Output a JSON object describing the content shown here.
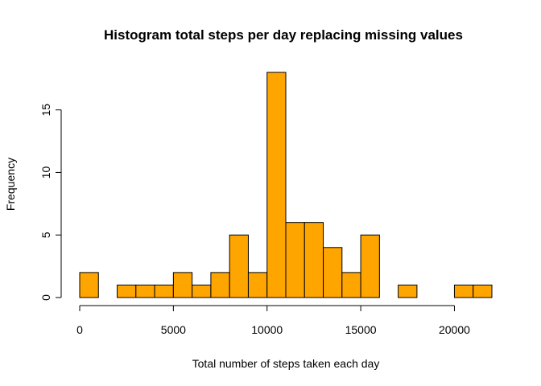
{
  "chart_data": {
    "type": "bar",
    "title": "Histogram total steps per day replacing missing values",
    "xlabel": "Total number of steps taken each day",
    "ylabel": "Frequency",
    "bar_color": "#FFA500",
    "bar_border_color": "#000000",
    "bin_width": 1000,
    "bins_start": [
      0,
      1000,
      2000,
      3000,
      4000,
      5000,
      6000,
      7000,
      8000,
      9000,
      10000,
      11000,
      12000,
      13000,
      14000,
      15000,
      16000,
      17000,
      18000,
      19000,
      20000,
      21000
    ],
    "values": [
      2,
      0,
      1,
      1,
      1,
      2,
      1,
      2,
      5,
      2,
      18,
      6,
      6,
      4,
      2,
      5,
      0,
      1,
      0,
      0,
      1,
      1
    ],
    "xlim": [
      0,
      22000
    ],
    "ylim": [
      0,
      18
    ],
    "x_ticks": [
      0,
      5000,
      10000,
      15000,
      20000
    ],
    "x_tick_labels": [
      "0",
      "5000",
      "10000",
      "15000",
      "20000"
    ],
    "y_ticks": [
      0,
      5,
      10,
      15
    ],
    "y_tick_labels": [
      "0",
      "5",
      "10",
      "15"
    ],
    "grid": false,
    "legend": "none"
  }
}
